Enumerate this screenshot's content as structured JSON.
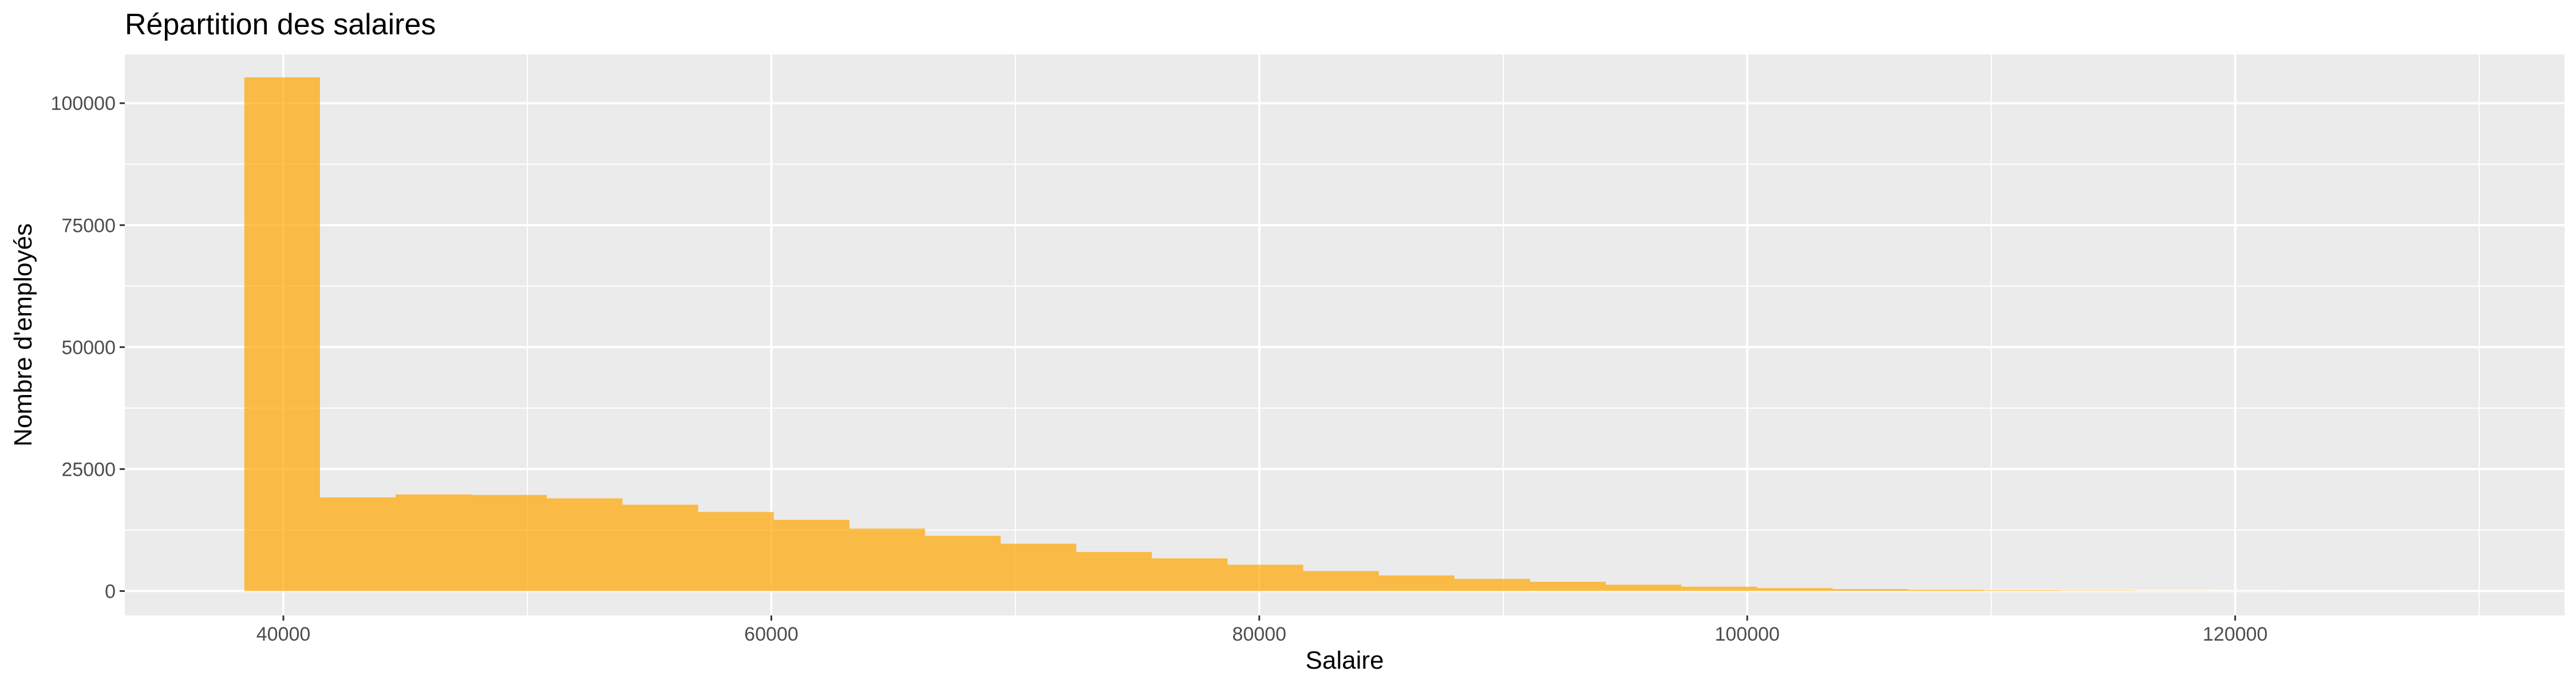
{
  "chart_data": {
    "type": "bar",
    "subtype": "histogram",
    "title": "Répartition des salaires",
    "xlabel": "Salaire",
    "ylabel": "Nombre d'employés",
    "xlim": [
      33500,
      133500
    ],
    "ylim": [
      -5000,
      110000
    ],
    "x_ticks": [
      40000,
      60000,
      80000,
      100000,
      120000
    ],
    "x_tick_labels": [
      "40000",
      "60000",
      "80000",
      "100000",
      "120000"
    ],
    "y_ticks": [
      0,
      25000,
      50000,
      75000,
      100000
    ],
    "y_tick_labels": [
      "0",
      "25000",
      "50000",
      "75000",
      "100000"
    ],
    "bins": [
      {
        "x0": 38400,
        "x1": 41500,
        "count": 105300
      },
      {
        "x0": 41500,
        "x1": 44600,
        "count": 19200
      },
      {
        "x0": 44600,
        "x1": 47700,
        "count": 19800
      },
      {
        "x0": 47700,
        "x1": 50800,
        "count": 19700
      },
      {
        "x0": 50800,
        "x1": 53900,
        "count": 19000
      },
      {
        "x0": 53900,
        "x1": 57000,
        "count": 17700
      },
      {
        "x0": 57000,
        "x1": 60100,
        "count": 16200
      },
      {
        "x0": 60100,
        "x1": 63200,
        "count": 14600
      },
      {
        "x0": 63200,
        "x1": 66300,
        "count": 12800
      },
      {
        "x0": 66300,
        "x1": 69400,
        "count": 11300
      },
      {
        "x0": 69400,
        "x1": 72500,
        "count": 9700
      },
      {
        "x0": 72500,
        "x1": 75600,
        "count": 8000
      },
      {
        "x0": 75600,
        "x1": 78700,
        "count": 6700
      },
      {
        "x0": 78700,
        "x1": 81800,
        "count": 5400
      },
      {
        "x0": 81800,
        "x1": 84900,
        "count": 4100
      },
      {
        "x0": 84900,
        "x1": 88000,
        "count": 3200
      },
      {
        "x0": 88000,
        "x1": 91100,
        "count": 2500
      },
      {
        "x0": 91100,
        "x1": 94200,
        "count": 1900
      },
      {
        "x0": 94200,
        "x1": 97300,
        "count": 1300
      },
      {
        "x0": 97300,
        "x1": 100400,
        "count": 900
      },
      {
        "x0": 100400,
        "x1": 103500,
        "count": 600
      },
      {
        "x0": 103500,
        "x1": 106600,
        "count": 400
      },
      {
        "x0": 106600,
        "x1": 109700,
        "count": 250
      },
      {
        "x0": 109700,
        "x1": 112800,
        "count": 150
      },
      {
        "x0": 112800,
        "x1": 115900,
        "count": 100
      },
      {
        "x0": 115900,
        "x1": 119000,
        "count": 50
      },
      {
        "x0": 119000,
        "x1": 122100,
        "count": 25
      },
      {
        "x0": 122100,
        "x1": 125200,
        "count": 15
      },
      {
        "x0": 125200,
        "x1": 128300,
        "count": 8
      },
      {
        "x0": 128300,
        "x1": 131400,
        "count": 4
      }
    ],
    "fill_color": "#FFA500",
    "fill_opacity": 0.7,
    "panel_background": "#EBEBEB",
    "grid": true,
    "grid_color": "#FFFFFF"
  }
}
